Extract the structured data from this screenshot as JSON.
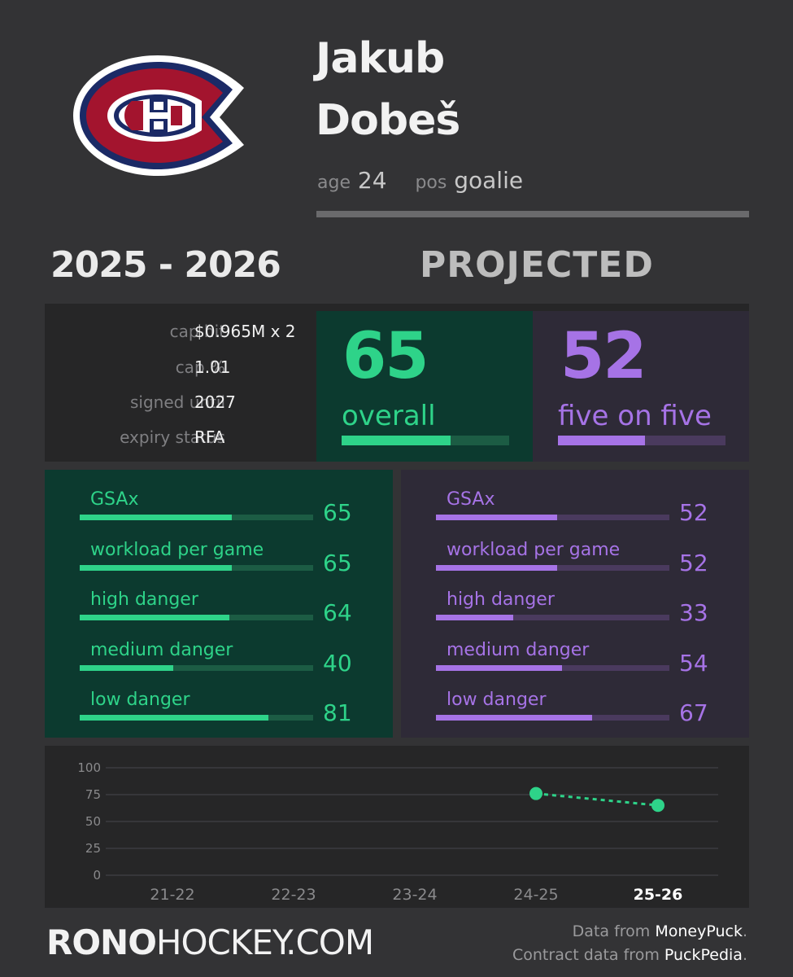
{
  "player": {
    "first_name": "Jakub",
    "last_name": "Dobeš",
    "age_label": "age",
    "age": "24",
    "pos_label": "pos",
    "position": "goalie",
    "team_logo": "canadiens-logo"
  },
  "headings": {
    "season": "2025 - 2026",
    "projected": "PROJECTED"
  },
  "contract": [
    {
      "label": "cap hit",
      "value": "$0.965M x 2"
    },
    {
      "label": "cap %",
      "value": "1.01"
    },
    {
      "label": "signed until",
      "value": "2027"
    },
    {
      "label": "expiry status",
      "value": "RFA"
    }
  ],
  "ratings": {
    "overall": {
      "value": "65",
      "label": "overall",
      "fill": 0.65
    },
    "five_on_five": {
      "value": "52",
      "label": "five on five",
      "fill": 0.52
    }
  },
  "overall_stats": [
    {
      "label": "GSAx",
      "value": "65",
      "fill": 0.65
    },
    {
      "label": "workload per game",
      "value": "65",
      "fill": 0.65
    },
    {
      "label": "high danger",
      "value": "64",
      "fill": 0.64
    },
    {
      "label": "medium danger",
      "value": "40",
      "fill": 0.4
    },
    {
      "label": "low danger",
      "value": "81",
      "fill": 0.81
    }
  ],
  "five_stats": [
    {
      "label": "GSAx",
      "value": "52",
      "fill": 0.52
    },
    {
      "label": "workload per game",
      "value": "52",
      "fill": 0.52
    },
    {
      "label": "high danger",
      "value": "33",
      "fill": 0.33
    },
    {
      "label": "medium danger",
      "value": "54",
      "fill": 0.54
    },
    {
      "label": "low danger",
      "value": "67",
      "fill": 0.67
    }
  ],
  "colors": {
    "green": "#2ed389",
    "green_track": "#1c5c44",
    "purple": "#a673e6",
    "purple_track": "#4a3a5e"
  },
  "chart_data": {
    "type": "line",
    "categories": [
      "21-22",
      "22-23",
      "23-24",
      "24-25",
      "25-26"
    ],
    "highlight_category": "25-26",
    "yticks": [
      0,
      25,
      50,
      75,
      100
    ],
    "ylim": [
      0,
      100
    ],
    "series": [
      {
        "values": [
          null,
          null,
          null,
          76,
          65
        ]
      }
    ],
    "grid": true
  },
  "footer": {
    "brand_bold": "RONO",
    "brand_rest": "HOCKEY.COM",
    "source1_prefix": "Data from ",
    "source1_name": "MoneyPuck",
    "source1_suffix": ".",
    "source2_prefix": "Contract data from ",
    "source2_name": "PuckPedia",
    "source2_suffix": "."
  }
}
